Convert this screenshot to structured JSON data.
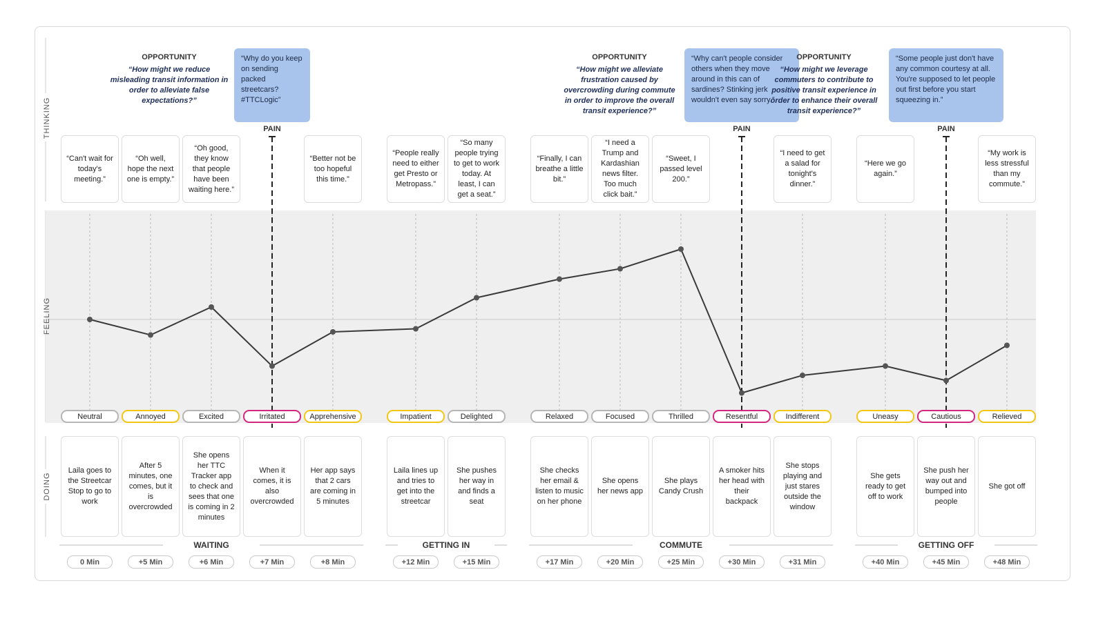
{
  "rows": {
    "thinking": "THINKING",
    "feeling": "FEELING",
    "doing": "DOING"
  },
  "feeling_range": [
    -100,
    100
  ],
  "stages": [
    {
      "name": "WAITING",
      "steps": [
        {
          "emotion": "Neutral",
          "color": "#b5b5b5",
          "feeling": 0,
          "thought": "“Can't wait for today's meeting.”",
          "action": "Laila goes to the Streetcar Stop to go to work",
          "time": "0 Min"
        },
        {
          "emotion": "Annoyed",
          "color": "#f3c614",
          "feeling": -15,
          "thought": "“Oh well, hope the next one is empty.”",
          "action": "After 5 minutes, one comes, but it is overcrowded",
          "time": "+5 Min"
        },
        {
          "emotion": "Excited",
          "color": "#b5b5b5",
          "feeling": 12,
          "thought": "“Oh good, they know that people have been waiting here.”",
          "action": "She opens her TTC Tracker app to check and sees that one is coming in 2 minutes",
          "time": "+6 Min"
        },
        {
          "emotion": "Irritated",
          "color": "#d4267f",
          "feeling": -45,
          "action": "When it comes, it is also overcrowded",
          "time": "+7 Min",
          "pain": {
            "label": "PAIN",
            "quote": "“Why do you keep on sending packed streetcars? #TTCLogic”",
            "opportunity": {
              "label": "OPPORTUNITY",
              "text": "“How might we reduce misleading transit information in order to alleviate false expectations?”"
            }
          }
        },
        {
          "emotion": "Apprehensive",
          "color": "#f3c614",
          "feeling": -12,
          "thought": "“Better not be too hopeful this time.”",
          "action": "Her app says that 2 cars are coming in 5 minutes",
          "time": "+8 Min"
        }
      ]
    },
    {
      "name": "GETTING IN",
      "steps": [
        {
          "emotion": "Impatient",
          "color": "#f3c614",
          "feeling": -9,
          "thought": "“People really need to either get Presto or Metropass.”",
          "action": "Laila lines up and tries to get into the streetcar",
          "time": "+12 Min"
        },
        {
          "emotion": "Delighted",
          "color": "#b5b5b5",
          "feeling": 21,
          "thought": "“So many people trying to get to work today. At least, I can get a seat.”",
          "action": "She pushes her way in and finds a seat",
          "time": "+15 Min"
        }
      ]
    },
    {
      "name": "COMMUTE",
      "steps": [
        {
          "emotion": "Relaxed",
          "color": "#b5b5b5",
          "feeling": 39,
          "thought": "“Finally, I can breathe a little bit.”",
          "action": "She checks her email & listen to music on her phone",
          "time": "+17 Min"
        },
        {
          "emotion": "Focused",
          "color": "#b5b5b5",
          "feeling": 49,
          "thought": "“I need a Trump and Kardashian news filter. Too much click bait.”",
          "action": "She opens her news app",
          "time": "+20 Min"
        },
        {
          "emotion": "Thrilled",
          "color": "#b5b5b5",
          "feeling": 68,
          "thought": "“Sweet, I passed level 200.”",
          "action": "She plays Candy Crush",
          "time": "+25 Min"
        },
        {
          "emotion": "Resentful",
          "color": "#d4267f",
          "feeling": -71,
          "action": "A smoker hits her head with their backpack",
          "time": "+30 Min",
          "pain": {
            "label": "PAIN",
            "quote": "“Why can't people consider others when they move around in this can of sardines? Stinking jerk wouldn't even say sorry.”",
            "opportunity": {
              "label": "OPPORTUNITY",
              "text": "“How might we alleviate frustration caused by overcrowding during commute in order to improve the overall transit experience?”"
            }
          }
        },
        {
          "emotion": "Indifferent",
          "color": "#f3c614",
          "feeling": -54,
          "thought": "“I need to get a salad for tonight's dinner.”",
          "action": "She stops playing and just stares outside the window",
          "time": "+31 Min"
        }
      ]
    },
    {
      "name": "GETTING OFF",
      "steps": [
        {
          "emotion": "Uneasy",
          "color": "#f3c614",
          "feeling": -45,
          "thought": "“Here we go again.”",
          "action": "She gets ready to get off to work",
          "time": "+40 Min"
        },
        {
          "emotion": "Cautious",
          "color": "#d4267f",
          "feeling": -59,
          "action": "She push her way out and bumped into people",
          "time": "+45 Min",
          "pain": {
            "label": "PAIN",
            "quote": "“Some people just don't have any common courtesy at all. You're supposed to let people out first before you start squeezing in.”",
            "opportunity": {
              "label": "OPPORTUNITY",
              "text": "“How might we leverage commuters to contribute to positive transit experience in order to enhance their overall transit experience?”"
            }
          }
        },
        {
          "emotion": "Relieved",
          "color": "#f3c614",
          "feeling": -25,
          "thought": "“My work is less stressful than my commute.”",
          "action": "She got off",
          "time": "+48 Min"
        }
      ]
    }
  ]
}
